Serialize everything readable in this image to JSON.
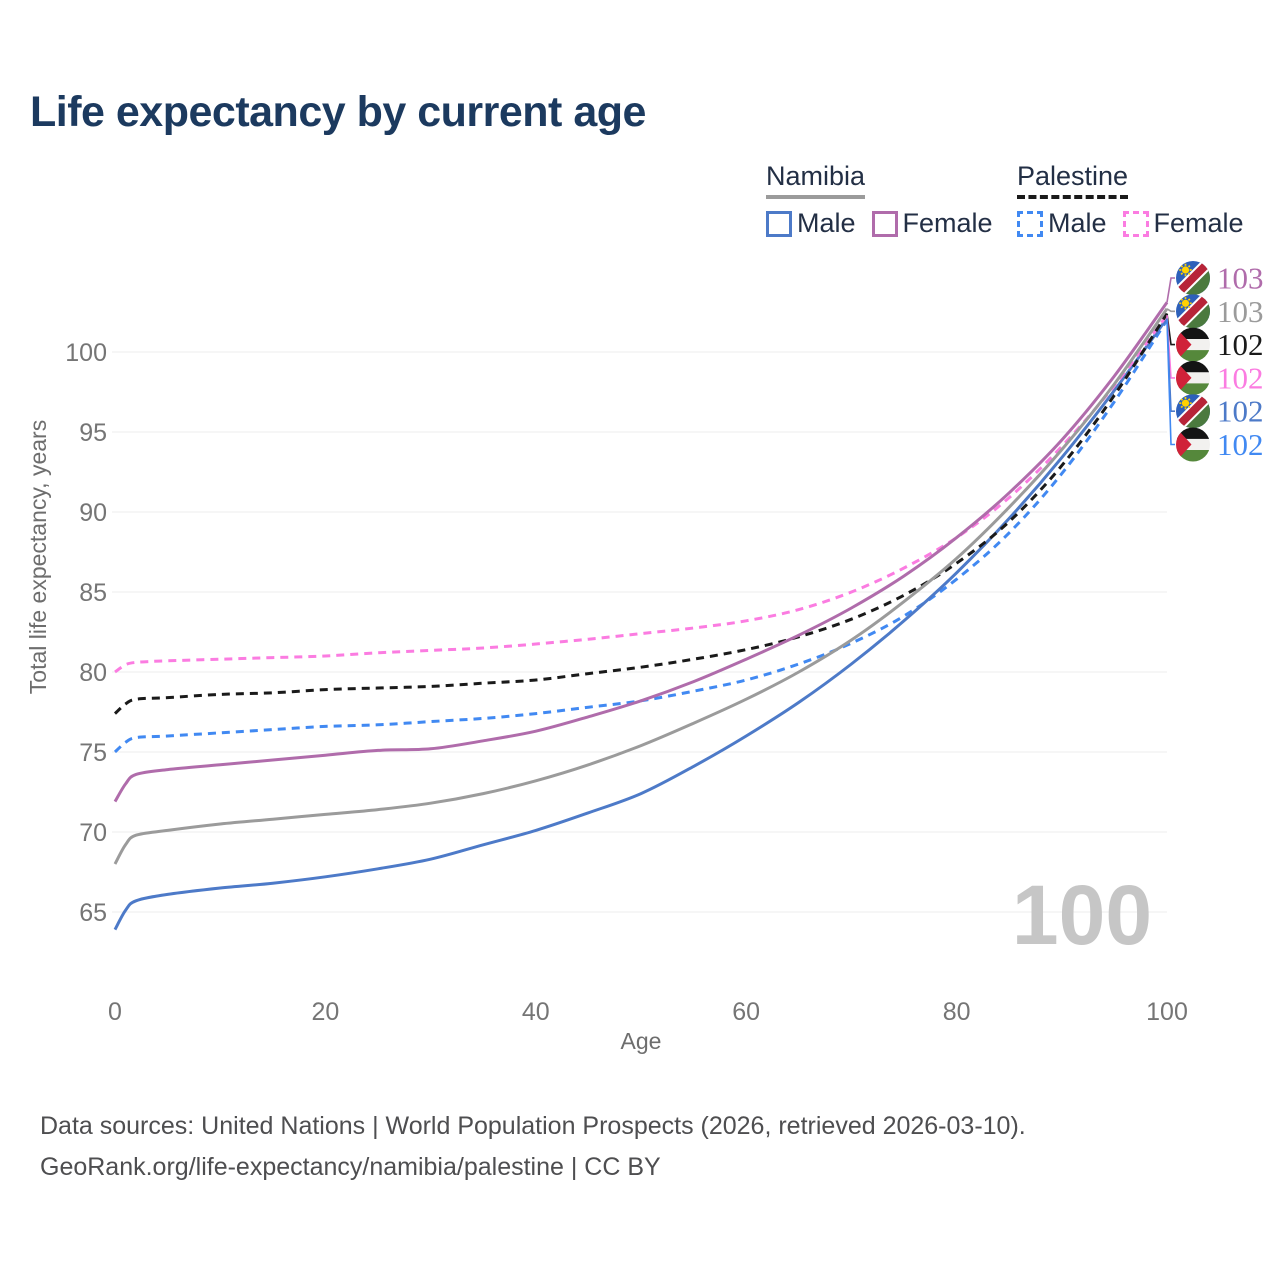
{
  "title": "Life expectancy by current age",
  "watermark_age": "100",
  "legend": {
    "groups": [
      {
        "country": "Namibia",
        "line_style": "solid",
        "items": [
          {
            "label": "Male"
          },
          {
            "label": "Female"
          }
        ]
      },
      {
        "country": "Palestine",
        "line_style": "dashed",
        "items": [
          {
            "label": "Male"
          },
          {
            "label": "Female"
          }
        ]
      }
    ]
  },
  "footer": {
    "line1": "Data sources: United Nations | World Population Prospects (2026, retrieved 2026-03-10).",
    "line2": "GeoRank.org/life-expectancy/namibia/palestine | CC BY"
  },
  "colors": {
    "title_text": "#1c3a5f",
    "legend_text": "#232f45",
    "tick_text": "#757575",
    "axis_title_text": "#6e6e6e",
    "gridline": "#ececec",
    "watermark": "#c6c6c6",
    "footer_text": "#4e4e50"
  },
  "chart_data": {
    "type": "line",
    "title": "Life expectancy by current age",
    "xlabel": "Age",
    "ylabel": "Total life expectancy, years",
    "xlim": [
      0,
      100
    ],
    "ylim": [
      63,
      104
    ],
    "x_ticks": [
      0,
      20,
      40,
      60,
      80,
      100
    ],
    "y_ticks": [
      65,
      70,
      75,
      80,
      85,
      90,
      95,
      100
    ],
    "grid": "horizontal",
    "legend_position": "top-right",
    "ages": [
      0,
      1,
      2,
      5,
      10,
      15,
      20,
      25,
      30,
      35,
      40,
      45,
      50,
      55,
      60,
      65,
      70,
      75,
      80,
      85,
      90,
      95,
      100
    ],
    "series": [
      {
        "id": "namibia-female",
        "name": "Namibia Female",
        "country": "Namibia",
        "sex": "Female",
        "color": "#b06cab",
        "dash": false,
        "end_label": "103",
        "values": [
          71.9,
          73.0,
          73.6,
          73.9,
          74.2,
          74.5,
          74.8,
          75.1,
          75.2,
          75.7,
          76.3,
          77.2,
          78.2,
          79.4,
          80.8,
          82.3,
          84.0,
          86.0,
          88.4,
          91.2,
          94.5,
          98.5,
          103.1
        ]
      },
      {
        "id": "namibia-total",
        "name": "Namibia",
        "country": "Namibia",
        "sex": "Both",
        "color": "#9b9b9b",
        "dash": false,
        "end_label": "103",
        "values": [
          68.0,
          69.2,
          69.8,
          70.1,
          70.5,
          70.8,
          71.1,
          71.4,
          71.8,
          72.4,
          73.2,
          74.2,
          75.4,
          76.8,
          78.3,
          80.0,
          82.0,
          84.4,
          87.1,
          90.3,
          93.9,
          98.0,
          102.7
        ]
      },
      {
        "id": "palestine-total",
        "name": "Palestine",
        "country": "Palestine",
        "sex": "Both",
        "color": "#1a1a1a",
        "dash": true,
        "end_label": "102",
        "values": [
          77.4,
          78.0,
          78.3,
          78.4,
          78.6,
          78.7,
          78.9,
          79.0,
          79.1,
          79.3,
          79.5,
          79.9,
          80.3,
          80.8,
          81.4,
          82.2,
          83.3,
          84.8,
          86.8,
          89.4,
          92.9,
          97.3,
          102.4
        ]
      },
      {
        "id": "palestine-female",
        "name": "Palestine Female",
        "country": "Palestine",
        "sex": "Female",
        "color": "#fb7ce1",
        "dash": true,
        "end_label": "102",
        "values": [
          80.0,
          80.45,
          80.6,
          80.7,
          80.8,
          80.9,
          81.0,
          81.2,
          81.35,
          81.5,
          81.75,
          82.05,
          82.4,
          82.75,
          83.2,
          83.9,
          85.0,
          86.5,
          88.4,
          90.9,
          94.1,
          97.9,
          102.3
        ]
      },
      {
        "id": "namibia-male",
        "name": "Namibia Male",
        "country": "Namibia",
        "sex": "Male",
        "color": "#4d7ac8",
        "dash": false,
        "end_label": "102",
        "values": [
          63.9,
          65.1,
          65.7,
          66.1,
          66.5,
          66.8,
          67.2,
          67.7,
          68.3,
          69.2,
          70.1,
          71.2,
          72.4,
          74.1,
          76.0,
          78.1,
          80.5,
          83.2,
          86.2,
          89.6,
          93.4,
          97.6,
          102.1
        ]
      },
      {
        "id": "palestine-male",
        "name": "Palestine Male",
        "country": "Palestine",
        "sex": "Male",
        "color": "#4189f2",
        "dash": true,
        "end_label": "102",
        "values": [
          75.0,
          75.6,
          75.9,
          76.0,
          76.2,
          76.4,
          76.6,
          76.7,
          76.9,
          77.1,
          77.4,
          77.8,
          78.2,
          78.8,
          79.5,
          80.5,
          81.8,
          83.5,
          85.8,
          88.7,
          92.4,
          96.9,
          102.0
        ]
      }
    ]
  }
}
